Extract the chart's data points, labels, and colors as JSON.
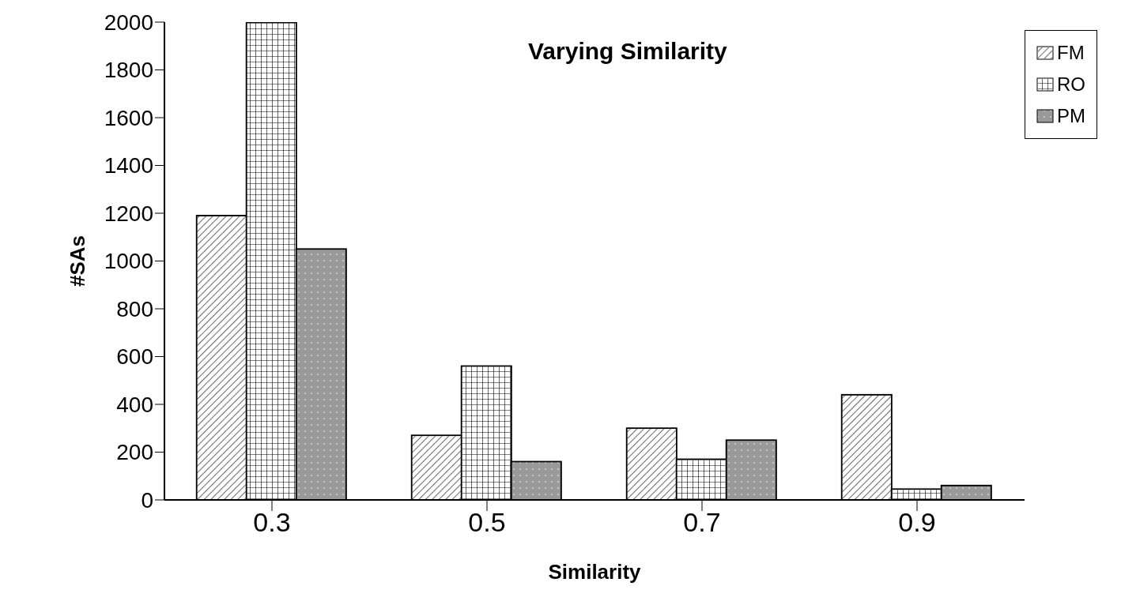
{
  "chart_data": {
    "type": "bar",
    "title": "Varying Similarity",
    "xlabel": "Similarity",
    "ylabel": "#SAs",
    "categories": [
      "0.3",
      "0.5",
      "0.7",
      "0.9"
    ],
    "series": [
      {
        "name": "FM",
        "color": "#ffffff",
        "values": [
          1190,
          270,
          300,
          440
        ]
      },
      {
        "name": "RO",
        "color": "#ffffff",
        "values": [
          2000,
          560,
          170,
          45
        ]
      },
      {
        "name": "PM",
        "color": "#999999",
        "values": [
          1050,
          160,
          250,
          60
        ]
      }
    ],
    "ylim": [
      0,
      2000
    ],
    "yticks": [
      0,
      200,
      400,
      600,
      800,
      1000,
      1200,
      1400,
      1600,
      1800,
      2000
    ],
    "grid": false,
    "legend": "top right"
  }
}
